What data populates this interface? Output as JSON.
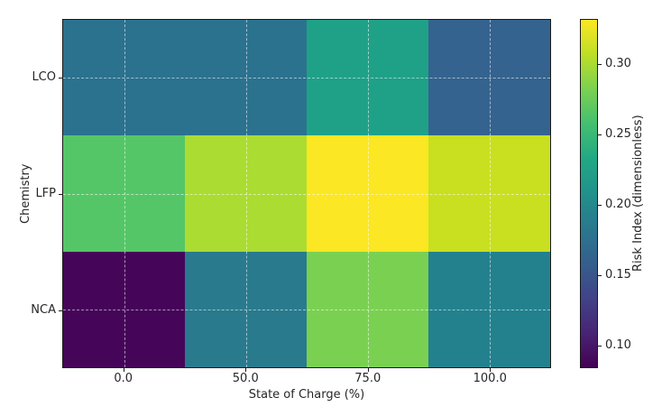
{
  "chart_data": {
    "type": "heatmap",
    "xlabel": "State of Charge (%)",
    "ylabel": "Chemistry",
    "x_categories": [
      "0.0",
      "50.0",
      "75.0",
      "100.0"
    ],
    "y_categories": [
      "LCO",
      "LFP",
      "NCA"
    ],
    "values": [
      [
        0.19,
        0.19,
        0.24,
        0.17
      ],
      [
        0.28,
        0.31,
        0.33,
        0.32
      ],
      [
        0.08,
        0.2,
        0.29,
        0.21
      ]
    ],
    "cell_colors": [
      [
        "#2b728f",
        "#2b728f",
        "#1fa187",
        "#34638f"
      ],
      [
        "#55c667",
        "#abdc32",
        "#fbe723",
        "#c8e020"
      ],
      [
        "#450559",
        "#2a7a8e",
        "#7ad151",
        "#23818e"
      ]
    ],
    "colormap": "viridis",
    "vmin": 0.084,
    "vmax": 0.332,
    "grid": true,
    "grid_style": "dashed-white",
    "legend_position": "right-colorbar",
    "colorbar": {
      "label": "Risk Index (dimensionless)",
      "tick_labels": [
        "0.30",
        "0.25",
        "0.20",
        "0.15",
        "0.10"
      ],
      "tick_values": [
        0.3,
        0.25,
        0.2,
        0.15,
        0.1
      ],
      "gradient_top_to_bottom": [
        "#fde725",
        "#bddf26",
        "#7ad151",
        "#44bf70",
        "#22a884",
        "#21918c",
        "#2a788e",
        "#355f8d",
        "#414487",
        "#482475",
        "#440154"
      ]
    },
    "colors": {
      "background": "#ffffff",
      "spine": "#1a1a1a",
      "text": "#262626",
      "gridline": "rgba(255,255,255,0.55)"
    }
  }
}
